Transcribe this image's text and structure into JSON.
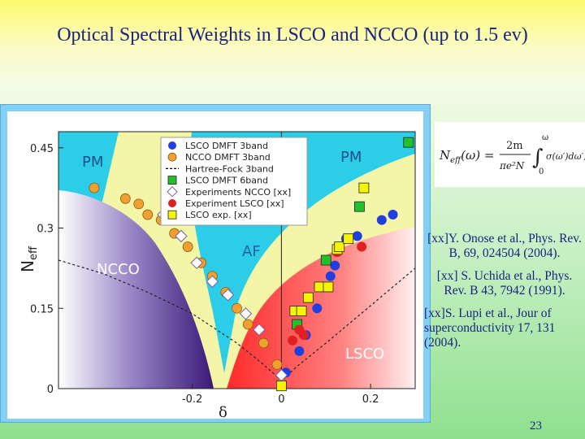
{
  "slide": {
    "title": "Optical Spectral Weights in LSCO and NCCO (up to 1.5 ev)",
    "page_number": "23"
  },
  "formula": {
    "lhs": "N",
    "lhs_sub": "eff",
    "lhs_arg": "(ω) =",
    "num": "2m",
    "den": "πe²N",
    "upper": "ω",
    "lower": "0",
    "integrand": "σ(ω′)dω′,"
  },
  "references": [
    "[xx]Y. Onose et al., Phys. Rev. B, 69, 024504 (2004).",
    "[xx] S. Uchida et al., Phys. Rev. B 43, 7942 (1991).",
    "[xx]S. Lupi et al., Jour of superconductivity 17, 131 (2004)."
  ],
  "chart_data": {
    "type": "scatter",
    "xlabel": "δ",
    "ylabel": "N",
    "ylabel_sub": "eff",
    "xlim": [
      -0.5,
      0.3
    ],
    "ylim": [
      0,
      0.48
    ],
    "x_ticks": [
      "-0.2",
      "0",
      "0.2"
    ],
    "y_ticks": [
      "0",
      "0.15",
      "0.3",
      "0.45"
    ],
    "regions": {
      "pm_left": "PM",
      "pm_right": "PM",
      "af": "AF",
      "ncco": "NCCO",
      "lsco": "LSCO"
    },
    "legend": [
      {
        "label": "LSCO DMFT 3band",
        "marker": "circle",
        "color": "#1f3fe0"
      },
      {
        "label": "NCCO DMFT 3band",
        "marker": "circle",
        "color": "#f0a030"
      },
      {
        "label": "Hartree-Fock 3band",
        "marker": "dashed-line",
        "color": "#000000"
      },
      {
        "label": "LSCO DMFT 6band",
        "marker": "square",
        "color": "#22c02a"
      },
      {
        "label": "Experiments NCCO [xx]",
        "marker": "diamond",
        "color": "#ffffff"
      },
      {
        "label": "Experiment LSCO [xx]",
        "marker": "circle",
        "color": "#e02020"
      },
      {
        "label": "LSCO exp. [xx]",
        "marker": "square",
        "color": "#f5f500"
      }
    ],
    "series": [
      {
        "name": "LSCO DMFT 3band",
        "marker": "circle",
        "color": "#1f3fe0",
        "x": [
          0.01,
          0.04,
          0.055,
          0.08,
          0.11,
          0.12,
          0.145,
          0.17,
          0.225,
          0.25
        ],
        "y": [
          0.03,
          0.07,
          0.1,
          0.15,
          0.21,
          0.23,
          0.28,
          0.285,
          0.315,
          0.325
        ]
      },
      {
        "name": "NCCO DMFT 3band",
        "marker": "circle",
        "color": "#f0a030",
        "x": [
          -0.42,
          -0.35,
          -0.32,
          -0.3,
          -0.27,
          -0.24,
          -0.21,
          -0.18,
          -0.155,
          -0.125,
          -0.1,
          -0.075,
          -0.04,
          -0.01,
          0.0
        ],
        "y": [
          0.375,
          0.355,
          0.345,
          0.325,
          0.315,
          0.29,
          0.265,
          0.235,
          0.21,
          0.18,
          0.15,
          0.12,
          0.085,
          0.045,
          0.01
        ]
      },
      {
        "name": "LSCO DMFT 6band",
        "marker": "square",
        "color": "#22c02a",
        "x": [
          0.035,
          0.1,
          0.175,
          0.285
        ],
        "y": [
          0.12,
          0.24,
          0.34,
          0.46
        ]
      },
      {
        "name": "Experiments NCCO",
        "marker": "diamond",
        "color": "#ffffff",
        "x": [
          -0.265,
          -0.225,
          -0.19,
          -0.155,
          -0.12,
          -0.08,
          -0.05,
          0.0
        ],
        "y": [
          0.325,
          0.285,
          0.235,
          0.2,
          0.175,
          0.14,
          0.11,
          0.025
        ]
      },
      {
        "name": "Experiment LSCO",
        "marker": "circle",
        "color": "#e02020",
        "x": [
          0.025,
          0.04,
          0.05,
          0.125,
          0.18
        ],
        "y": [
          0.09,
          0.11,
          0.1,
          0.255,
          0.265
        ]
      },
      {
        "name": "LSCO exp.",
        "marker": "square",
        "color": "#f5f500",
        "x": [
          0.0,
          0.03,
          0.045,
          0.06,
          0.085,
          0.105,
          0.125,
          0.13,
          0.15,
          0.185
        ],
        "y": [
          0.005,
          0.145,
          0.145,
          0.17,
          0.19,
          0.19,
          0.26,
          0.265,
          0.28,
          0.375
        ]
      }
    ],
    "hartree_fock": {
      "x": [
        -0.5,
        -0.4,
        -0.3,
        -0.2,
        -0.1,
        -0.04,
        0.0,
        0.04,
        0.1,
        0.2,
        0.3
      ],
      "y": [
        0.24,
        0.215,
        0.18,
        0.14,
        0.085,
        0.045,
        0.015,
        0.045,
        0.085,
        0.155,
        0.225
      ]
    }
  }
}
